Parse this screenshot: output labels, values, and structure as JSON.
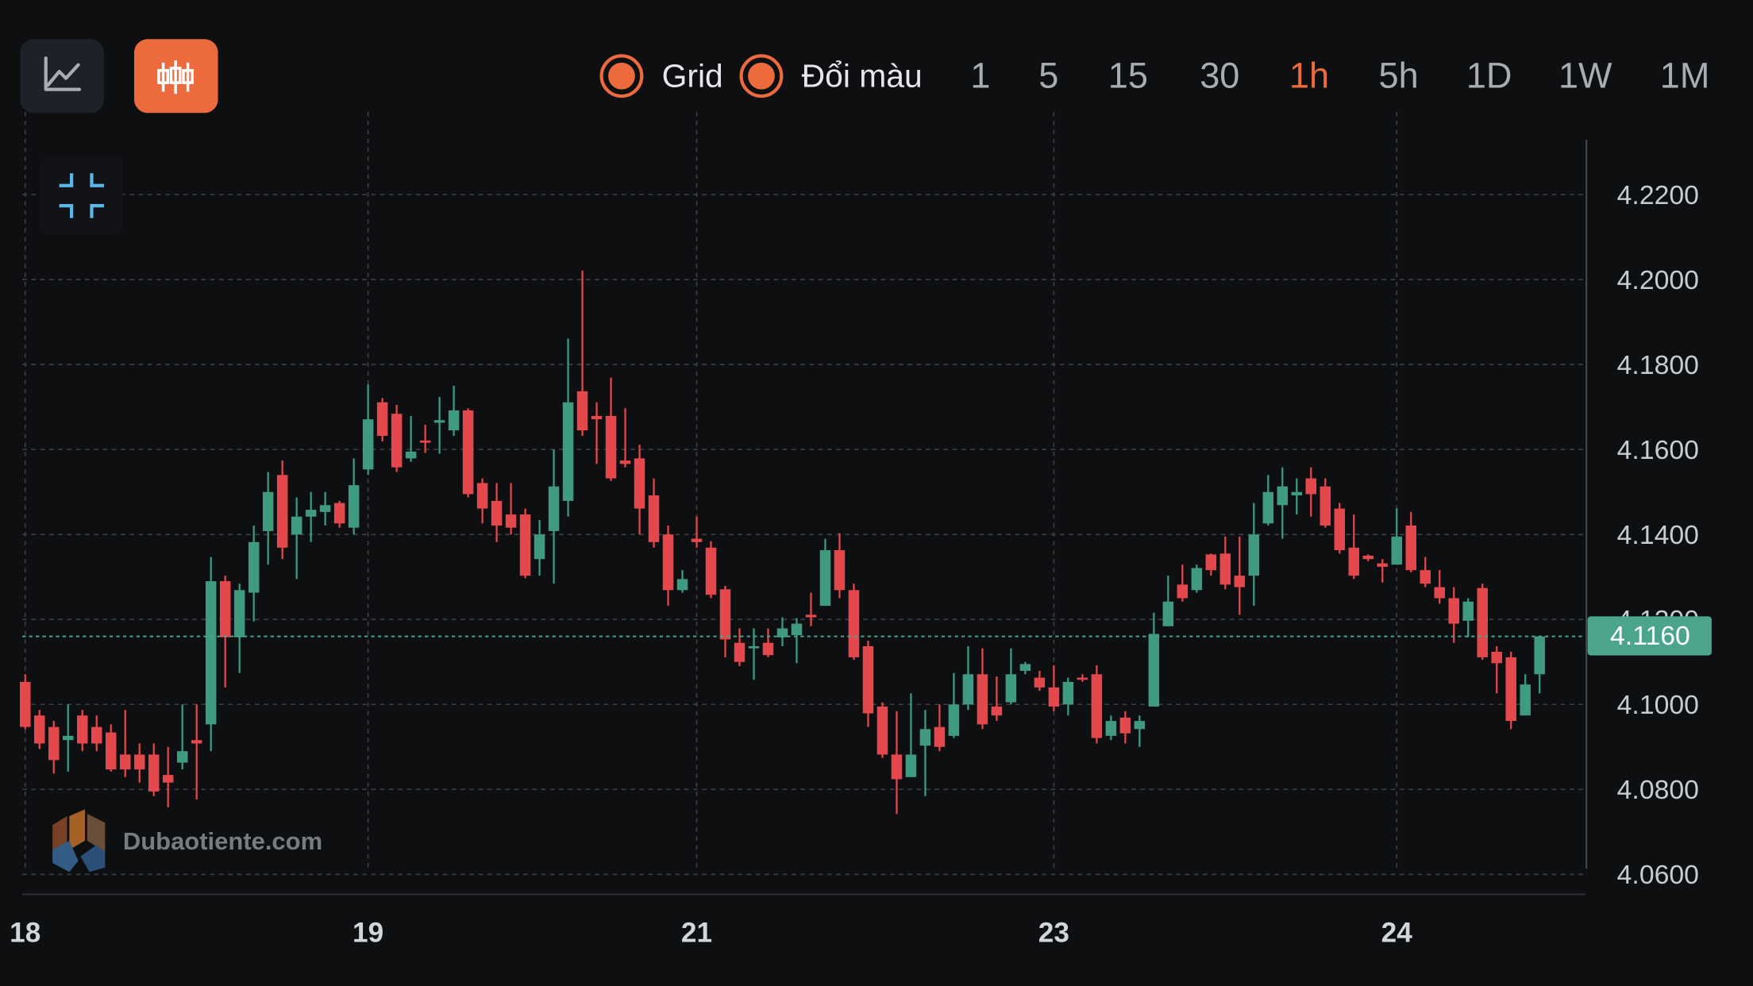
{
  "toolbar": {
    "toggles": [
      "Grid",
      "Đổi màu"
    ],
    "timeframes": [
      "1",
      "5",
      "15",
      "30",
      "1h",
      "5h",
      "1D",
      "1W",
      "1M"
    ],
    "active_timeframe_index": 4,
    "accent_color": "#ec6a3c"
  },
  "watermark": "Dubaotiente.com",
  "chart_data": {
    "type": "candlestick",
    "grid": true,
    "up_color": "#3e9a81",
    "down_color": "#e4484c",
    "price_line_color": "#4aa58c",
    "xlim": [
      -0.2,
      109.2
    ],
    "xticks": [
      {
        "value": 0,
        "label": "18"
      },
      {
        "value": 24,
        "label": "19"
      },
      {
        "value": 47,
        "label": "21"
      },
      {
        "value": 72,
        "label": "23"
      },
      {
        "value": 96,
        "label": "24"
      }
    ],
    "ylim": [
      4.0553,
      4.2329
    ],
    "yticks": [
      {
        "value": 4.06,
        "label": "4.0600"
      },
      {
        "value": 4.08,
        "label": "4.0800"
      },
      {
        "value": 4.1,
        "label": "4.1000"
      },
      {
        "value": 4.12,
        "label": "4.1200"
      },
      {
        "value": 4.14,
        "label": "4.1400"
      },
      {
        "value": 4.16,
        "label": "4.1600"
      },
      {
        "value": 4.18,
        "label": "4.1800"
      },
      {
        "value": 4.2,
        "label": "4.2000"
      },
      {
        "value": 4.22,
        "label": "4.2200"
      }
    ],
    "last_price": {
      "value": 4.116,
      "label": "4.1160"
    },
    "open": [
      4.1053,
      4.0974,
      4.0947,
      4.0916,
      4.0974,
      4.0947,
      4.0934,
      4.0882,
      4.0882,
      4.0882,
      4.0834,
      4.0863,
      4.0916,
      4.0953,
      4.129,
      4.1158,
      4.1263,
      4.1408,
      4.154,
      4.14,
      4.1442,
      4.1453,
      4.1474,
      4.1416,
      4.1553,
      4.1711,
      4.1684,
      4.1579,
      4.1621,
      4.1663,
      4.1645,
      4.1692,
      4.1521,
      4.1479,
      4.1447,
      4.1447,
      4.1342,
      4.1408,
      4.1479,
      4.1737,
      4.1679,
      4.1679,
      4.1574,
      4.1579,
      4.1492,
      4.14,
      4.1269,
      4.139,
      4.1369,
      4.1271,
      4.1145,
      4.1132,
      4.1145,
      4.1158,
      4.1163,
      4.1211,
      4.1232,
      4.1363,
      4.1269,
      4.1137,
      4.0995,
      4.0882,
      4.0829,
      4.0903,
      4.0947,
      4.0926,
      4.1,
      4.1071,
      4.0995,
      4.1005,
      4.1079,
      4.1063,
      4.104,
      4.1,
      4.1063,
      4.1071,
      4.0926,
      4.0969,
      4.0942,
      4.0995,
      4.1184,
      4.1282,
      4.1269,
      4.1353,
      4.1355,
      4.1303,
      4.1303,
      4.1426,
      4.1469,
      4.1492,
      4.1532,
      4.1513,
      4.1461,
      4.1369,
      4.135,
      4.1332,
      4.1329,
      4.1421,
      4.1316,
      4.1276,
      4.125,
      4.1197,
      4.1274,
      4.1124,
      4.1111,
      4.0974,
      4.1071
    ],
    "high": [
      4.1071,
      4.0987,
      4.0961,
      4.1,
      4.0987,
      4.0974,
      4.0953,
      4.0987,
      4.0908,
      4.0908,
      4.09,
      4.1,
      4.1,
      4.1347,
      4.1303,
      4.1284,
      4.1421,
      4.1547,
      4.1574,
      4.1487,
      4.15,
      4.15,
      4.1479,
      4.1579,
      4.1753,
      4.1721,
      4.1705,
      4.1679,
      4.1658,
      4.1724,
      4.175,
      4.1697,
      4.1532,
      4.1521,
      4.1521,
      4.1461,
      4.1434,
      4.16,
      4.1861,
      4.2021,
      4.1711,
      4.1769,
      4.1697,
      4.1611,
      4.1532,
      4.1421,
      4.1316,
      4.1442,
      4.1384,
      4.1279,
      4.1179,
      4.1179,
      4.1179,
      4.1205,
      4.1203,
      4.1263,
      4.139,
      4.1403,
      4.1284,
      4.115,
      4.1005,
      4.0984,
      4.1026,
      4.0987,
      4.1,
      4.1074,
      4.1137,
      4.1132,
      4.1066,
      4.1132,
      4.11,
      4.1079,
      4.1092,
      4.1063,
      4.1071,
      4.1092,
      4.0974,
      4.0984,
      4.0974,
      4.1216,
      4.1303,
      4.1329,
      4.1329,
      4.1355,
      4.1395,
      4.1395,
      4.1474,
      4.154,
      4.1558,
      4.1532,
      4.1558,
      4.1532,
      4.1474,
      4.1447,
      4.1353,
      4.1342,
      4.1461,
      4.1453,
      4.1347,
      4.1316,
      4.1276,
      4.125,
      4.1284,
      4.1137,
      4.1124,
      4.1071,
      4.116
    ],
    "low": [
      4.0942,
      4.0895,
      4.0837,
      4.0842,
      4.089,
      4.089,
      4.0842,
      4.0829,
      4.0816,
      4.0784,
      4.0758,
      4.0847,
      4.0776,
      4.089,
      4.104,
      4.1074,
      4.1195,
      4.1329,
      4.1342,
      4.1295,
      4.1382,
      4.1421,
      4.1416,
      4.14,
      4.154,
      4.1619,
      4.1547,
      4.1571,
      4.1592,
      4.159,
      4.1632,
      4.1487,
      4.1426,
      4.1382,
      4.14,
      4.1297,
      4.1303,
      4.1284,
      4.1442,
      4.1632,
      4.1566,
      4.1526,
      4.1558,
      4.14,
      4.1369,
      4.1232,
      4.1263,
      4.1369,
      4.125,
      4.1111,
      4.109,
      4.1058,
      4.1111,
      4.1137,
      4.1097,
      4.1184,
      4.1232,
      4.125,
      4.1105,
      4.0947,
      4.0874,
      4.0742,
      4.0829,
      4.0784,
      4.089,
      4.0921,
      4.0987,
      4.0942,
      4.0961,
      4.1,
      4.1071,
      4.1032,
      4.0984,
      4.0974,
      4.1053,
      4.0908,
      4.0916,
      4.0908,
      4.09,
      4.0995,
      4.1184,
      4.1242,
      4.1263,
      4.1303,
      4.1271,
      4.1211,
      4.1232,
      4.1421,
      4.139,
      4.1447,
      4.1442,
      4.1416,
      4.1355,
      4.1295,
      4.1337,
      4.1287,
      4.1329,
      4.1311,
      4.1276,
      4.1237,
      4.1145,
      4.1158,
      4.1105,
      4.1026,
      4.0942,
      4.0974,
      4.1026
    ],
    "close": [
      4.0947,
      4.0908,
      4.0869,
      4.0926,
      4.0908,
      4.0908,
      4.0847,
      4.0847,
      4.0847,
      4.0795,
      4.0816,
      4.089,
      4.0908,
      4.129,
      4.1158,
      4.1269,
      4.1382,
      4.15,
      4.1369,
      4.1442,
      4.1458,
      4.1469,
      4.1426,
      4.1516,
      4.1671,
      4.1632,
      4.1558,
      4.1595,
      4.1616,
      4.1669,
      4.1692,
      4.1495,
      4.1461,
      4.1421,
      4.1416,
      4.1303,
      4.14,
      4.1513,
      4.1711,
      4.1645,
      4.1671,
      4.1532,
      4.1566,
      4.1461,
      4.1382,
      4.1269,
      4.1295,
      4.1382,
      4.1258,
      4.1153,
      4.11,
      4.1137,
      4.1116,
      4.1179,
      4.119,
      4.1205,
      4.1363,
      4.1269,
      4.1111,
      4.0979,
      4.0882,
      4.0824,
      4.0882,
      4.0942,
      4.09,
      4.1,
      4.1071,
      4.0953,
      4.0974,
      4.1071,
      4.1095,
      4.104,
      4.0995,
      4.1053,
      4.1058,
      4.0921,
      4.0961,
      4.0932,
      4.0961,
      4.1166,
      4.1242,
      4.125,
      4.1321,
      4.1316,
      4.1282,
      4.1276,
      4.14,
      4.15,
      4.1513,
      4.15,
      4.1495,
      4.1421,
      4.1363,
      4.1303,
      4.1342,
      4.1324,
      4.1395,
      4.1316,
      4.1284,
      4.125,
      4.119,
      4.1242,
      4.1111,
      4.1097,
      4.0961,
      4.1047,
      4.116
    ]
  }
}
